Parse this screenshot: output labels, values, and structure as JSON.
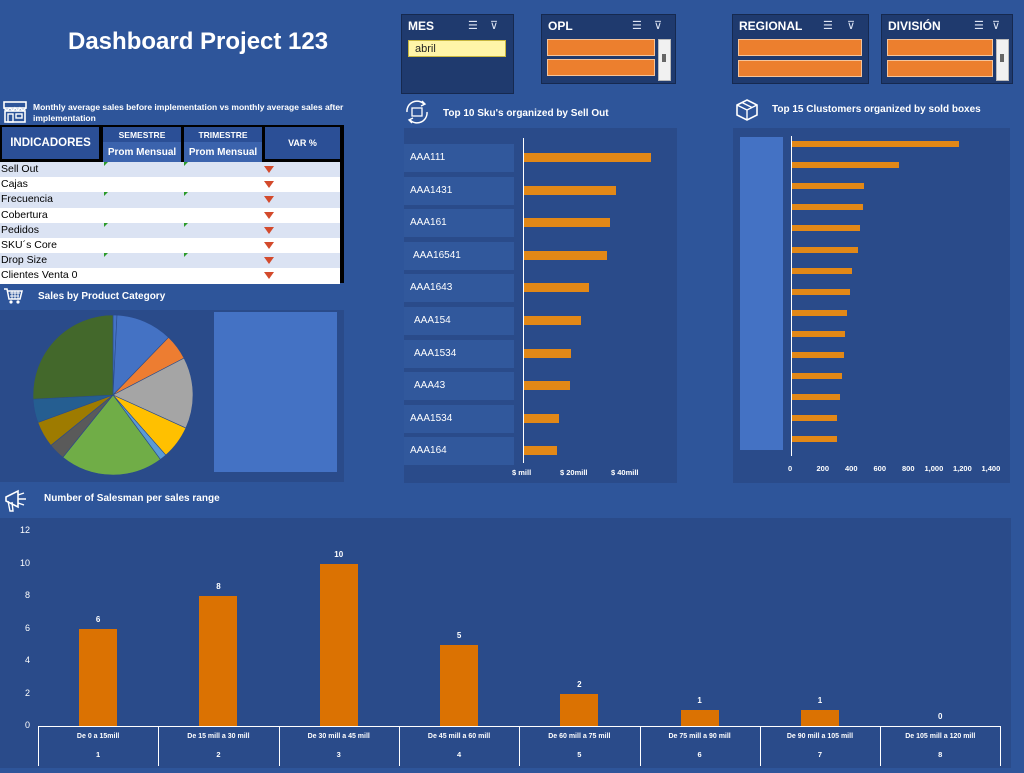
{
  "title": "Dashboard Project 123",
  "slicers": {
    "mes": {
      "label": "MES",
      "selected": "abril"
    },
    "opl": {
      "label": "OPL"
    },
    "regional": {
      "label": "REGIONAL"
    },
    "division": {
      "label": "DIVISIÓN"
    }
  },
  "indicators": {
    "title": "Monthly average sales before implementation vs monthly average sales after implementation",
    "col_indicadores": "INDICADORES",
    "col_semestre": "SEMESTRE",
    "col_trimestre": "TRIMESTRE",
    "col_var": "VAR %",
    "sub_prom_1": "Prom Mensual",
    "sub_prom_2": "Prom Mensual",
    "rows": [
      "Sell Out",
      "Cajas",
      "Frecuencia",
      "Cobertura",
      "Pedidos",
      "SKU´s Core",
      "Drop Size",
      "Clientes Venta 0"
    ]
  },
  "sales_category": {
    "title": "Sales by Product Category"
  },
  "top10": {
    "title": "Top 10 Sku's organized by Sell Out",
    "x_ticks": [
      "$ mill",
      "$ 20mill",
      "$ 40mill"
    ]
  },
  "top15": {
    "title": "Top 15 Clustomers organized by sold boxes",
    "x_ticks": [
      "0",
      "200",
      "400",
      "600",
      "800",
      "1,000",
      "1,200",
      "1,400"
    ]
  },
  "salesman": {
    "title": "Number of Salesman per sales range"
  },
  "colors": {
    "background": "#2e559a",
    "panel": "#2a4b8a",
    "bar": "#e28817",
    "accent_blue": "#4472c4"
  },
  "chart_data": [
    {
      "type": "pie",
      "title": "Sales by Product Category",
      "values": [
        0.8,
        11.5,
        5.2,
        14.5,
        6.8,
        1.4,
        21.0,
        3.4,
        5.3,
        4.8,
        26.0
      ],
      "colors": [
        "#4472c4",
        "#4472c4",
        "#ed7d31",
        "#a5a5a5",
        "#ffc000",
        "#5b9bd5",
        "#70ad47",
        "#5a5a5a",
        "#9e7b00",
        "#255e91",
        "#43682b"
      ]
    },
    {
      "type": "bar",
      "title": "Top 10 Sku's organized by Sell Out",
      "categories": [
        "AAA111",
        "AAA1431",
        "AAA161",
        "AAA16541",
        "AAA1643",
        "AAA154",
        "AAA1534",
        "AAA43",
        "AAA1534",
        "AAA164"
      ],
      "values": [
        45,
        32.5,
        30.5,
        29.5,
        23,
        20.5,
        17,
        16.5,
        12.5,
        12
      ],
      "x_ticks": [
        "$ mill",
        "$ 20mill",
        "$ 40mill"
      ],
      "xlim": [
        0,
        45
      ]
    },
    {
      "type": "bar",
      "title": "Top 15 Clustomers organized by sold boxes",
      "values": [
        1175,
        750,
        510,
        500,
        475,
        465,
        425,
        410,
        385,
        370,
        365,
        350,
        340,
        320,
        315
      ],
      "x_ticks": [
        "0",
        "200",
        "400",
        "600",
        "800",
        "1,000",
        "1,200",
        "1,400"
      ],
      "xlim": [
        0,
        1400
      ]
    },
    {
      "type": "bar",
      "title": "Number of Salesman per sales range",
      "categories": [
        "De 0 a 15mill",
        "De 15 mill a 30 mill",
        "De 30 mill a 45 mill",
        "De 45 mill a 60 mill",
        "De 60 mill a 75 mill",
        "De 75 mill a 90 mill",
        "De 90 mill a 105 mill",
        "De 105 mill a 120 mill"
      ],
      "category_numbers": [
        "1",
        "2",
        "3",
        "4",
        "5",
        "6",
        "7",
        "8"
      ],
      "values": [
        6,
        8,
        10,
        5,
        2,
        1,
        1,
        0
      ],
      "y_ticks": [
        "0",
        "2",
        "4",
        "6",
        "8",
        "10",
        "12"
      ],
      "ylim": [
        0,
        12
      ]
    }
  ]
}
